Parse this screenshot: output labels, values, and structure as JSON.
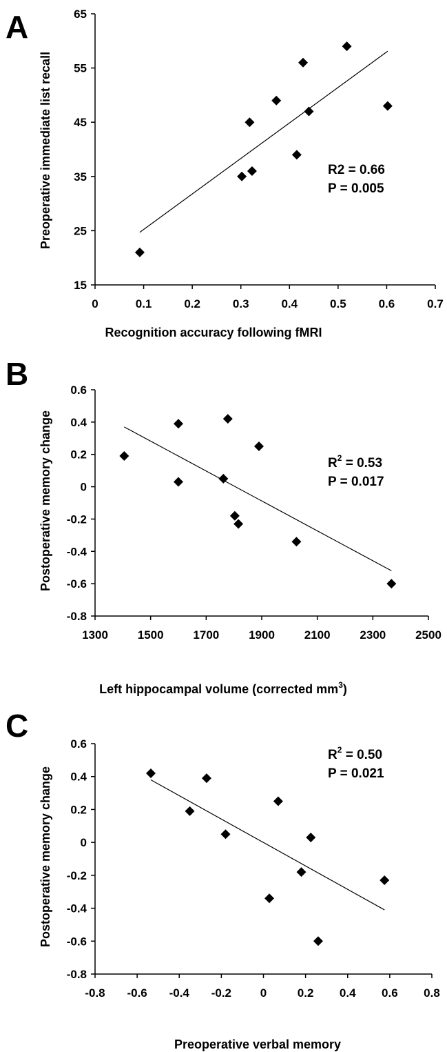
{
  "chart_data": [
    {
      "panel": "A",
      "type": "scatter",
      "xlabel": "Recognition accuracy following fMRI",
      "ylabel": "Preoperative immediate list recall",
      "xlim": [
        0,
        0.7
      ],
      "ylim": [
        15,
        65
      ],
      "xticks": [
        "0",
        "0.1",
        "0.2",
        "0.3",
        "0.4",
        "0.5",
        "0.6",
        "0.7"
      ],
      "yticks": [
        "15",
        "25",
        "35",
        "45",
        "55",
        "65"
      ],
      "points": [
        {
          "x": 0.092,
          "y": 21
        },
        {
          "x": 0.302,
          "y": 35
        },
        {
          "x": 0.318,
          "y": 45
        },
        {
          "x": 0.323,
          "y": 36
        },
        {
          "x": 0.373,
          "y": 49
        },
        {
          "x": 0.415,
          "y": 39
        },
        {
          "x": 0.428,
          "y": 56
        },
        {
          "x": 0.44,
          "y": 47
        },
        {
          "x": 0.518,
          "y": 59
        },
        {
          "x": 0.602,
          "y": 48
        }
      ],
      "trendline": [
        {
          "x": 0.092,
          "y": 24.7
        },
        {
          "x": 0.602,
          "y": 58.1
        }
      ],
      "stats": [
        "R2 = 0.66",
        "P = 0.005"
      ],
      "r2_superscript": false
    },
    {
      "panel": "B",
      "type": "scatter",
      "xlabel": "Left hippocampal volume (corrected mm",
      "xlabel_sup": "3",
      "xlabel_end": ")",
      "ylabel": "Postoperative memory change",
      "xlim": [
        1300,
        2500
      ],
      "ylim": [
        -0.8,
        0.6
      ],
      "xticks": [
        "1300",
        "1500",
        "1700",
        "1900",
        "2100",
        "2300",
        "2500"
      ],
      "yticks": [
        "-0.8",
        "-0.6",
        "-0.4",
        "-0.2",
        "0",
        "0.2",
        "0.4",
        "0.6"
      ],
      "points": [
        {
          "x": 1405,
          "y": 0.19
        },
        {
          "x": 1600,
          "y": 0.39
        },
        {
          "x": 1600,
          "y": 0.03
        },
        {
          "x": 1762,
          "y": 0.05
        },
        {
          "x": 1778,
          "y": 0.42
        },
        {
          "x": 1803,
          "y": -0.18
        },
        {
          "x": 1816,
          "y": -0.23
        },
        {
          "x": 1890,
          "y": 0.25
        },
        {
          "x": 2025,
          "y": -0.34
        },
        {
          "x": 2367,
          "y": -0.6
        }
      ],
      "trendline": [
        {
          "x": 1405,
          "y": 0.37
        },
        {
          "x": 2367,
          "y": -0.52
        }
      ],
      "stats": [
        "R",
        "2",
        " = 0.53",
        "P = 0.017"
      ],
      "r2_superscript": true
    },
    {
      "panel": "C",
      "type": "scatter",
      "xlabel": "Preoperative verbal memory",
      "ylabel": "Postoperative memory change",
      "xlim": [
        -0.8,
        0.8
      ],
      "ylim": [
        -0.8,
        0.6
      ],
      "xticks": [
        "-0.8",
        "-0.6",
        "-0.4",
        "-0.2",
        "0",
        "0.2",
        "0.4",
        "0.6",
        "0.8"
      ],
      "yticks": [
        "-0.8",
        "-0.6",
        "-0.4",
        "-0.2",
        "0",
        "0.2",
        "0.4",
        "0.6"
      ],
      "points": [
        {
          "x": -0.535,
          "y": 0.42
        },
        {
          "x": -0.35,
          "y": 0.19
        },
        {
          "x": -0.27,
          "y": 0.39
        },
        {
          "x": -0.18,
          "y": 0.05
        },
        {
          "x": 0.028,
          "y": -0.34
        },
        {
          "x": 0.07,
          "y": 0.25
        },
        {
          "x": 0.18,
          "y": -0.18
        },
        {
          "x": 0.225,
          "y": 0.03
        },
        {
          "x": 0.26,
          "y": -0.6
        },
        {
          "x": 0.575,
          "y": -0.23
        }
      ],
      "trendline": [
        {
          "x": -0.535,
          "y": 0.38
        },
        {
          "x": 0.575,
          "y": -0.41
        }
      ],
      "stats": [
        "R",
        "2",
        " = 0.50",
        "P = 0.021"
      ],
      "r2_superscript": true
    }
  ]
}
